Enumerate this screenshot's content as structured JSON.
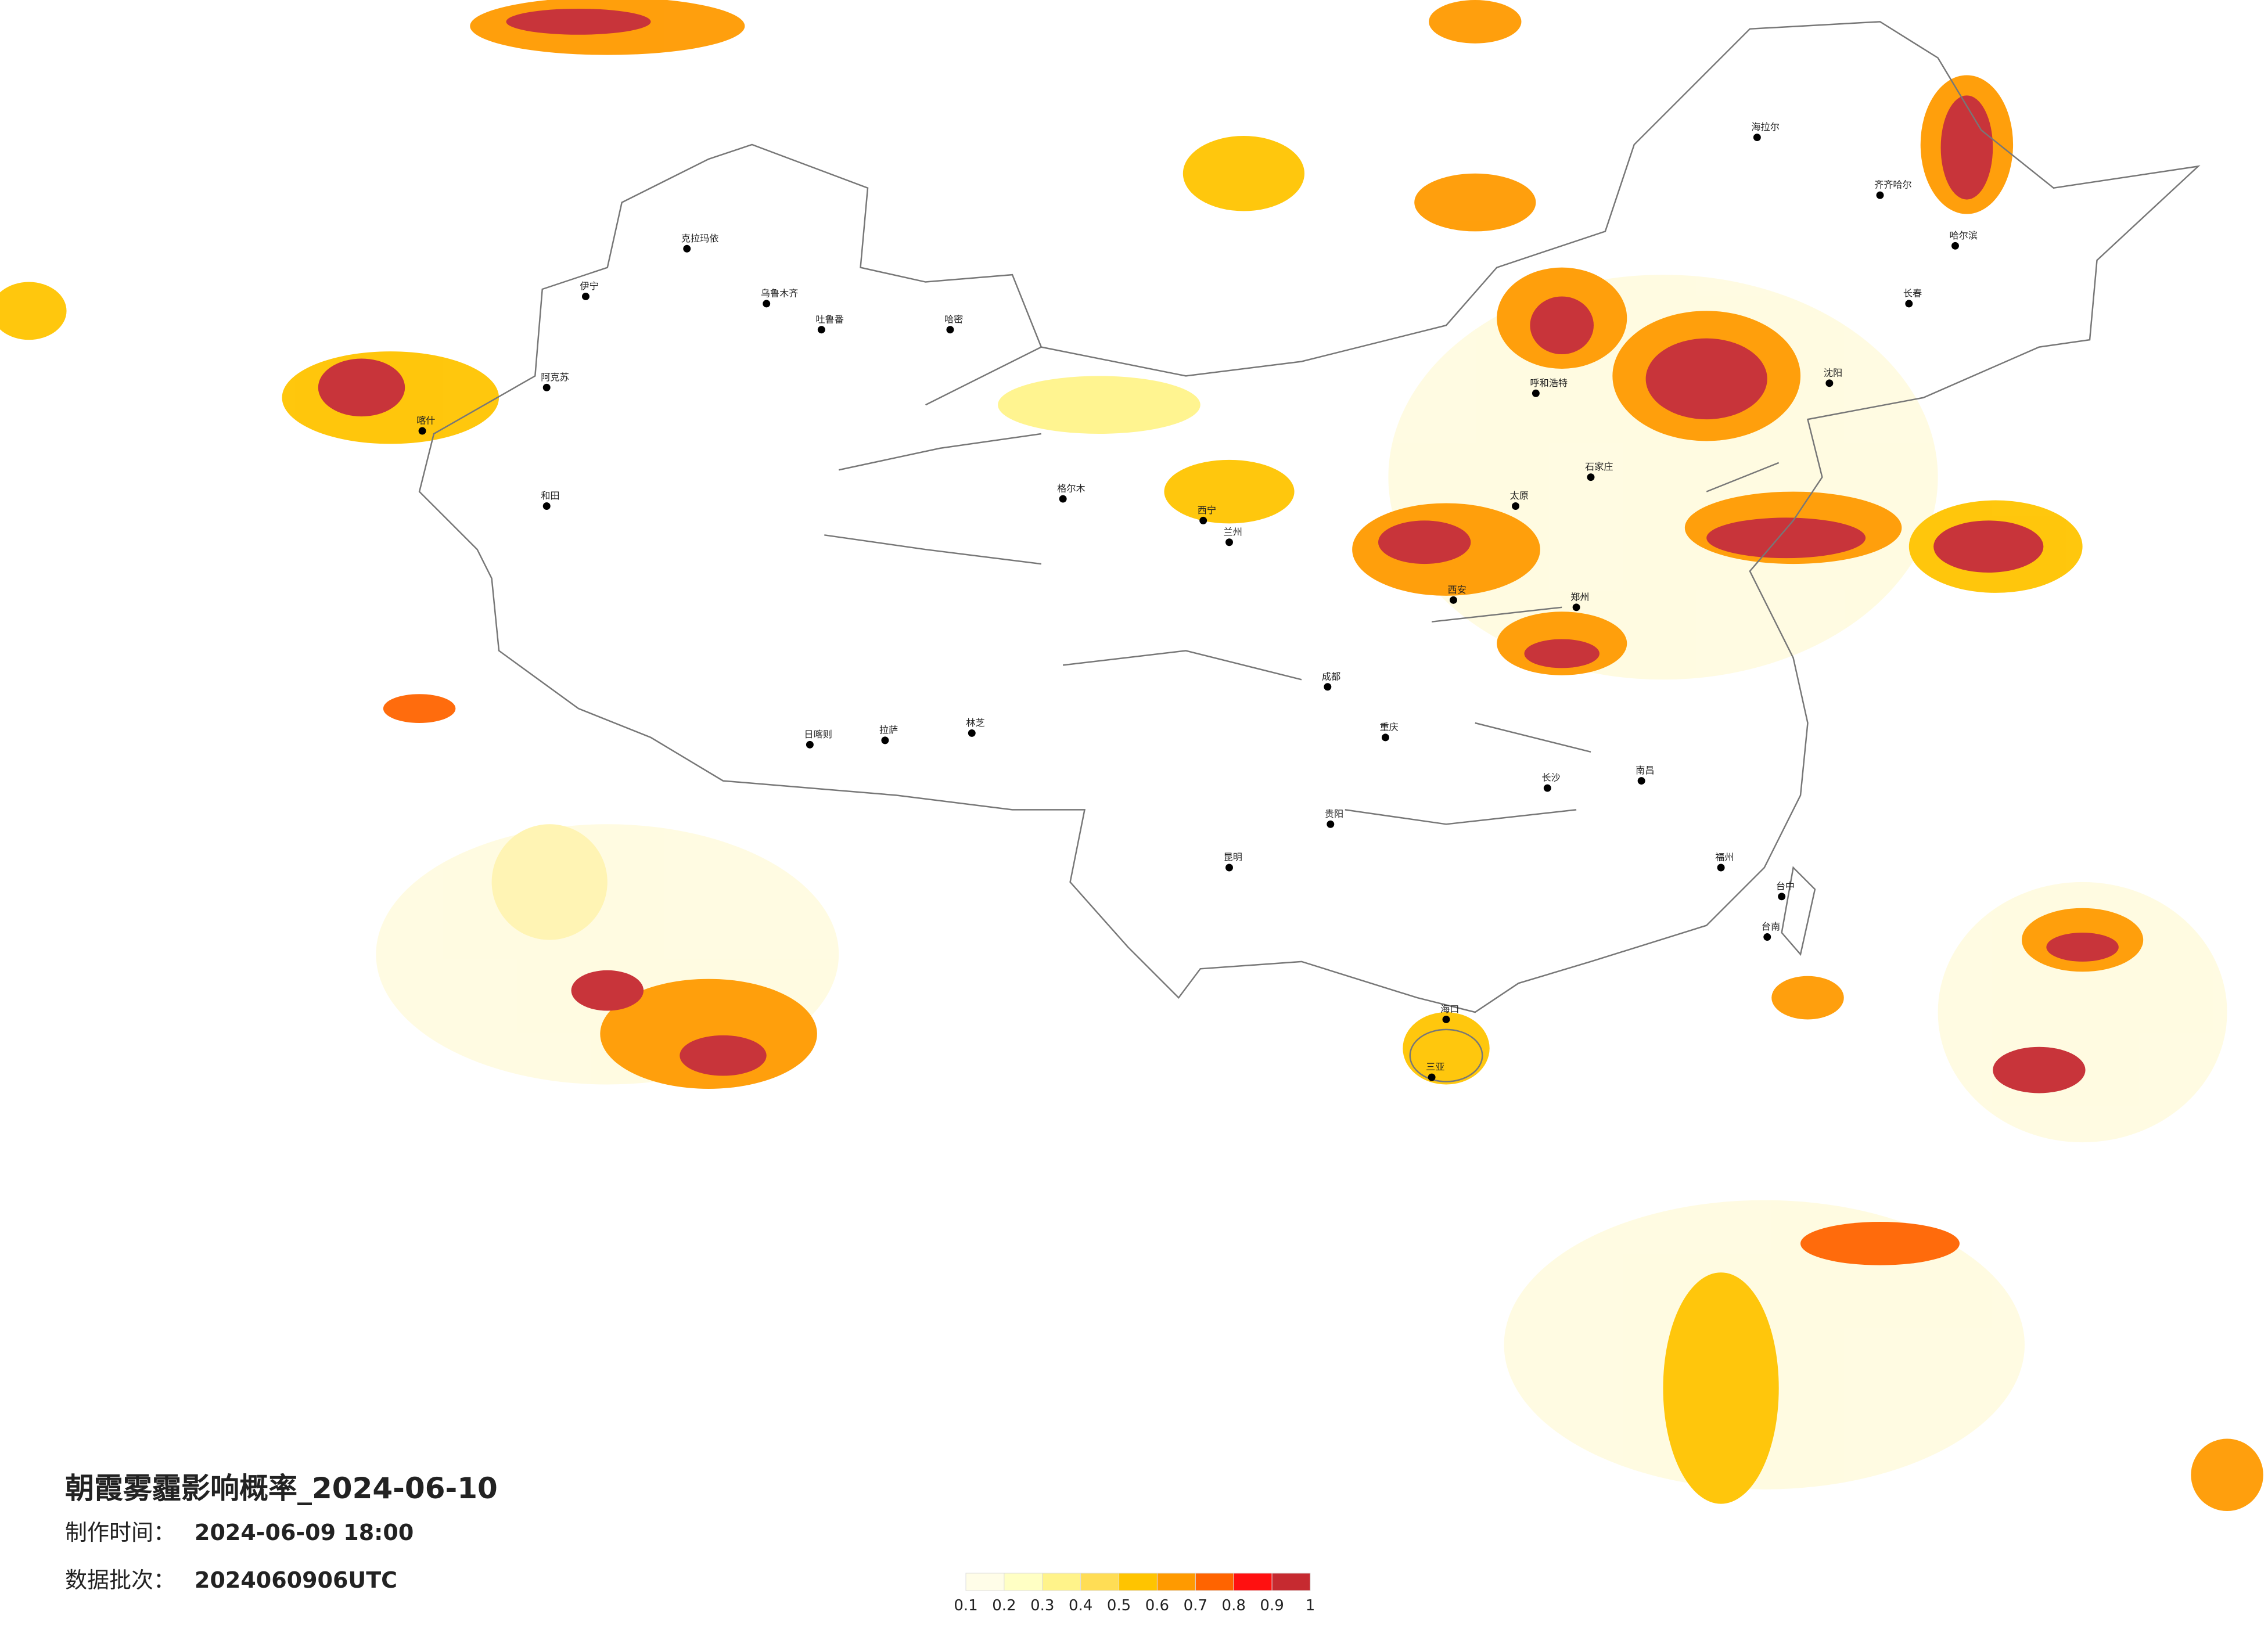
{
  "header": {
    "title": "朝霞雾霾影响概率_2024-06-10",
    "produced_label": "制作时间：",
    "produced_value": "2024-06-09 18:00",
    "batch_label": "数据批次：",
    "batch_value": "2024060906UTC"
  },
  "legend": {
    "colors": [
      "#fffde8",
      "#ffffc4",
      "#fff38a",
      "#ffdd55",
      "#ffc400",
      "#ff9a00",
      "#ff6400",
      "#ff1010",
      "#c62a30"
    ],
    "ticks": [
      0.1,
      0.2,
      0.3,
      0.4,
      0.5,
      0.6,
      0.7,
      0.8,
      0.9,
      1
    ]
  },
  "cities": [
    "克拉玛依",
    "乌鲁木齐",
    "伊宁",
    "阿克苏",
    "喀什",
    "和田",
    "哈密",
    "吐鲁番",
    "格尔木",
    "西宁",
    "兰州",
    "拉萨",
    "日喀则",
    "林芝",
    "海拉尔",
    "齐齐哈尔",
    "哈尔滨",
    "长春",
    "沈阳",
    "呼和浩特",
    "石家庄",
    "太原",
    "西安",
    "郑州",
    "成都",
    "重庆",
    "昆明",
    "贵阳",
    "长沙",
    "南昌",
    "福州",
    "台中",
    "台南",
    "海口",
    "三亚"
  ]
}
